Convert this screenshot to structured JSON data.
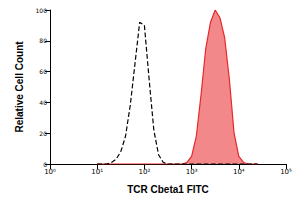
{
  "chart_data": {
    "type": "line",
    "x_label": "TCR Cbeta1 FITC",
    "y_label": "Relative Cell Count",
    "log": "x",
    "grid": false,
    "xlim": [
      1,
      100000
    ],
    "xticks": [
      {
        "value": 1,
        "label": "10⁰"
      },
      {
        "value": 10,
        "label": "10¹"
      },
      {
        "value": 100,
        "label": "10²"
      },
      {
        "value": 1000,
        "label": "10³"
      },
      {
        "value": 10000,
        "label": "10⁴"
      },
      {
        "value": 100000,
        "label": "10⁵"
      }
    ],
    "ylim": [
      0,
      100
    ],
    "yticks": [
      0,
      20,
      40,
      60,
      80,
      100
    ],
    "x": [
      10,
      12.6,
      15.8,
      20,
      25.1,
      31.6,
      39.8,
      50.1,
      63.1,
      79.4,
      100,
      125.9,
      158.5,
      199.5,
      251.2,
      316.2,
      398.1,
      501.2,
      631,
      794.3,
      1000,
      1259,
      1585,
      1995,
      2512,
      3162,
      3981,
      5012,
      6310,
      7943,
      10000,
      12589,
      15849,
      19953,
      25119
    ],
    "series": [
      {
        "type": "line",
        "color": "#000000",
        "line_style": "dashed",
        "values": [
          0,
          0,
          0,
          1,
          3,
          8,
          18,
          38,
          65,
          92,
          90,
          55,
          22,
          6,
          1,
          0,
          0,
          0,
          0,
          0,
          0,
          0,
          0,
          0,
          0,
          0,
          0,
          0,
          0,
          0,
          0,
          0,
          0,
          0,
          0
        ]
      },
      {
        "type": "area",
        "color": "#e8262a",
        "line_style": "solid",
        "values": [
          0,
          0,
          0,
          0,
          0,
          0,
          0,
          0,
          0,
          0,
          0,
          0,
          0,
          0,
          0,
          0,
          0,
          0,
          0,
          1,
          5,
          18,
          45,
          75,
          92,
          100,
          95,
          82,
          55,
          20,
          5,
          1,
          0,
          0,
          0
        ]
      }
    ]
  }
}
